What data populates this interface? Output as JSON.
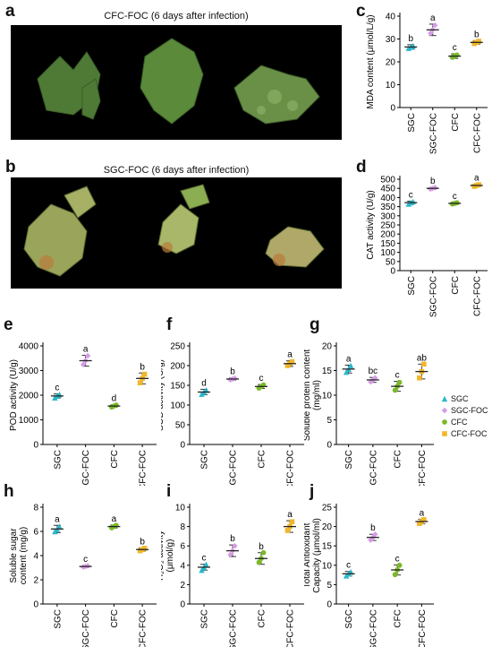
{
  "panel_labels": {
    "a": "a",
    "b": "b",
    "c": "c",
    "d": "d",
    "e": "e",
    "f": "f",
    "g": "g",
    "h": "h",
    "i": "i",
    "j": "j"
  },
  "photos": {
    "a": {
      "caption": "CFC-FOC (6 days after infection)"
    },
    "b": {
      "caption": "SGC-FOC (6 days after infection)"
    }
  },
  "legend": [
    {
      "name": "SGC",
      "color": "#29b8cc",
      "marker": "triangle"
    },
    {
      "name": "SGC-FOC",
      "color": "#d89be6",
      "marker": "diamond"
    },
    {
      "name": "CFC",
      "color": "#7cb928",
      "marker": "circle"
    },
    {
      "name": "CFC-FOC",
      "color": "#f0b72a",
      "marker": "square"
    }
  ],
  "chart_data": [
    {
      "panel": "c",
      "type": "scatter",
      "ylabel": "MDA content (μmol/L/g)",
      "ylim": [
        0,
        40
      ],
      "yticks": [
        0,
        10,
        20,
        30,
        40
      ],
      "categories": [
        "SGC",
        "SGC-FOC",
        "CFC",
        "CFC-FOC"
      ],
      "means": [
        26.5,
        34,
        22.5,
        28.5
      ],
      "errors": [
        1,
        2.5,
        1,
        0.8
      ],
      "points": [
        [
          26,
          26.5,
          27
        ],
        [
          32.5,
          34,
          36
        ],
        [
          22,
          22.5,
          23
        ],
        [
          28,
          28.5,
          29
        ]
      ],
      "letters": [
        "b",
        "a",
        "c",
        "b"
      ]
    },
    {
      "panel": "d",
      "type": "scatter",
      "ylabel": "CAT activity (U/g)",
      "ylim": [
        0,
        500
      ],
      "yticks": [
        0,
        50,
        100,
        150,
        200,
        250,
        300,
        350,
        400,
        450,
        500
      ],
      "categories": [
        "SGC",
        "SGC-FOC",
        "CFC",
        "CFC-FOC"
      ],
      "means": [
        372,
        450,
        368,
        466
      ],
      "errors": [
        8,
        5,
        5,
        6
      ],
      "points": [
        [
          365,
          372,
          378
        ],
        [
          446,
          450,
          454
        ],
        [
          365,
          368,
          371
        ],
        [
          461,
          466,
          470
        ]
      ],
      "letters": [
        "c",
        "b",
        "c",
        "a"
      ]
    },
    {
      "panel": "e",
      "type": "scatter",
      "ylabel": "POD activity (U/g)",
      "ylim": [
        0,
        4000
      ],
      "yticks": [
        0,
        1000,
        2000,
        3000,
        4000
      ],
      "categories": [
        "SGC",
        "SGC-FOC",
        "CFC",
        "CFC-FOC"
      ],
      "means": [
        1970,
        3400,
        1560,
        2680
      ],
      "errors": [
        80,
        220,
        50,
        220
      ],
      "points": [
        [
          1900,
          1970,
          2030
        ],
        [
          3250,
          3400,
          3600
        ],
        [
          1520,
          1560,
          1600
        ],
        [
          2500,
          2680,
          2850
        ]
      ],
      "letters": [
        "c",
        "a",
        "d",
        "b"
      ]
    },
    {
      "panel": "f",
      "type": "scatter",
      "ylabel": "SOD activity (U/g)",
      "ylim": [
        0,
        250
      ],
      "yticks": [
        0,
        50,
        100,
        150,
        200,
        250
      ],
      "categories": [
        "SGC",
        "SGC-FOC",
        "CFC",
        "CFC-FOC"
      ],
      "means": [
        133,
        166,
        147,
        205
      ],
      "errors": [
        7,
        3,
        5,
        7
      ],
      "points": [
        [
          128,
          133,
          138
        ],
        [
          164,
          166,
          168
        ],
        [
          143,
          147,
          151
        ],
        [
          200,
          205,
          210
        ]
      ],
      "letters": [
        "d",
        "b",
        "c",
        "a"
      ]
    },
    {
      "panel": "g",
      "type": "scatter",
      "ylabel": "Soluble protein content (mg/ml)",
      "ylim": [
        0,
        20
      ],
      "yticks": [
        0,
        5,
        10,
        15,
        20
      ],
      "categories": [
        "SGC",
        "SGC-FOC",
        "CFC",
        "CFC-FOC"
      ],
      "means": [
        15.3,
        13.1,
        11.8,
        14.8
      ],
      "errors": [
        0.8,
        0.5,
        1,
        1.5
      ],
      "points": [
        [
          14.7,
          15.3,
          16
        ],
        [
          12.7,
          13.1,
          13.5
        ],
        [
          11,
          11.8,
          12.6
        ],
        [
          13.5,
          14.8,
          16.3
        ]
      ],
      "letters": [
        "a",
        "bc",
        "c",
        "ab"
      ]
    },
    {
      "panel": "h",
      "type": "scatter",
      "ylabel": "Soluble sugar content (mg/g)",
      "ylim": [
        0,
        8
      ],
      "yticks": [
        0,
        2,
        4,
        6,
        8
      ],
      "categories": [
        "SGC",
        "SGC-FOC",
        "CFC",
        "CFC-FOC"
      ],
      "means": [
        6.2,
        3.1,
        6.4,
        4.5
      ],
      "errors": [
        0.3,
        0.08,
        0.12,
        0.12
      ],
      "points": [
        [
          6,
          6.2,
          6.4
        ],
        [
          3.05,
          3.1,
          3.15
        ],
        [
          6.3,
          6.4,
          6.5
        ],
        [
          4.4,
          4.5,
          4.6
        ]
      ],
      "letters": [
        "a",
        "c",
        "a",
        "b"
      ]
    },
    {
      "panel": "i",
      "type": "scatter",
      "ylabel": "H₂O₂ activity (μmol/g)",
      "ylim": [
        0,
        10
      ],
      "yticks": [
        0,
        2,
        4,
        6,
        8,
        10
      ],
      "categories": [
        "SGC",
        "SGC-FOC",
        "CFC",
        "CFC-FOC"
      ],
      "means": [
        3.8,
        5.5,
        4.7,
        8
      ],
      "errors": [
        0.3,
        0.6,
        0.6,
        0.6
      ],
      "points": [
        [
          3.5,
          3.8,
          4.1
        ],
        [
          5.1,
          5.5,
          6
        ],
        [
          4.3,
          4.7,
          5.3
        ],
        [
          7.6,
          8,
          8.5
        ]
      ],
      "letters": [
        "c",
        "b",
        "b",
        "a"
      ]
    },
    {
      "panel": "j",
      "type": "scatter",
      "ylabel": "Total Antioxidant Capacity (μmol/ml)",
      "ylim": [
        0,
        25
      ],
      "yticks": [
        0,
        5,
        10,
        15,
        20,
        25
      ],
      "categories": [
        "SGC",
        "SGC-FOC",
        "CFC",
        "CFC-FOC"
      ],
      "means": [
        7.8,
        17.2,
        8.8,
        21.3
      ],
      "errors": [
        0.6,
        0.8,
        1.3,
        0.6
      ],
      "points": [
        [
          7.3,
          7.8,
          8.3
        ],
        [
          16.5,
          17.2,
          18
        ],
        [
          7.6,
          8.8,
          10
        ],
        [
          20.8,
          21.3,
          21.8
        ]
      ],
      "letters": [
        "c",
        "b",
        "c",
        "a"
      ]
    }
  ]
}
